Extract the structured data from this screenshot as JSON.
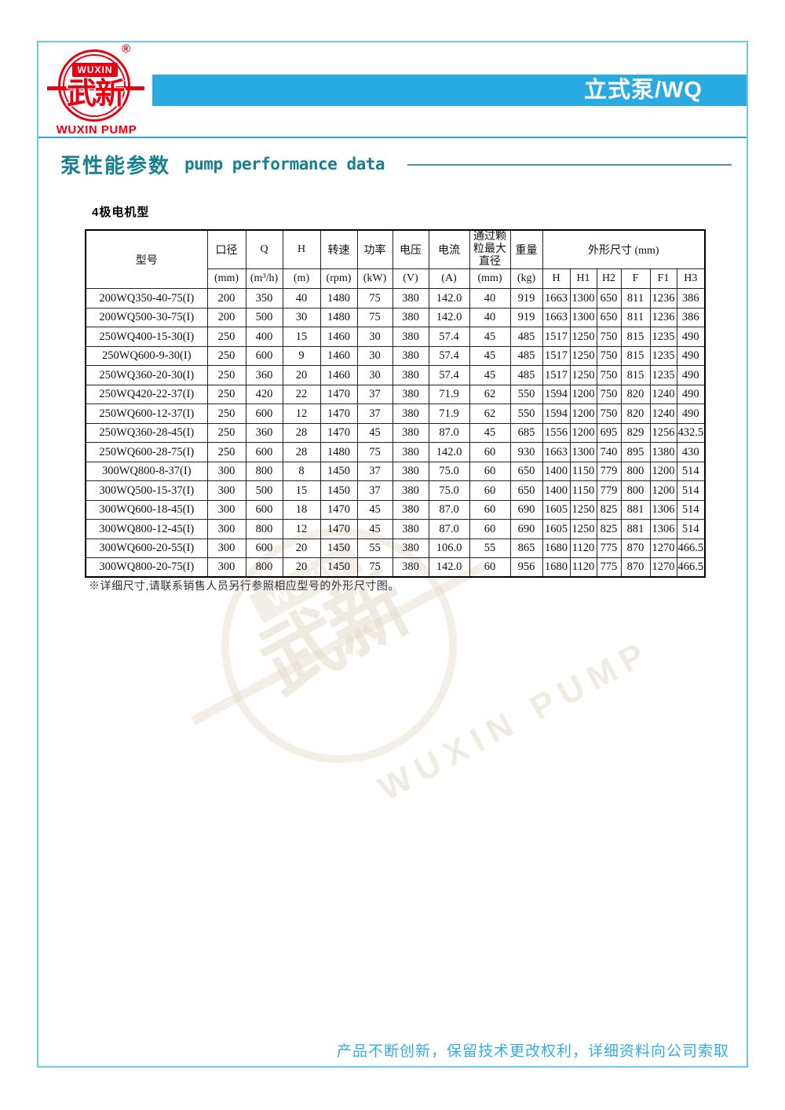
{
  "colors": {
    "accent_blue": "#29ABE2",
    "border_blue": "#70C7EB",
    "teal": "#17808F",
    "brand_red": "#E60012",
    "footer_blue": "#35ADE4"
  },
  "logo": {
    "registered_mark": "®",
    "brand_en": "WUXIN",
    "brand_zh": "武新",
    "caption": "WUXIN PUMP"
  },
  "header": {
    "category_label": "立式泵/WQ"
  },
  "section": {
    "title_zh": "泵性能参数",
    "title_en": "pump performance data"
  },
  "table": {
    "caption": "4极电机型",
    "model_header": "型号",
    "columns": [
      {
        "label": "口径",
        "unit": "(mm)"
      },
      {
        "label": "Q",
        "unit": "(m³/h)"
      },
      {
        "label": "H",
        "unit": "(m)"
      },
      {
        "label": "转速",
        "unit": "(rpm)"
      },
      {
        "label": "功率",
        "unit": "(kW)"
      },
      {
        "label": "电压",
        "unit": "(V)"
      },
      {
        "label": "电流",
        "unit": "(A)"
      },
      {
        "label": "通过颗粒最大直径",
        "unit": "(mm)"
      },
      {
        "label": "重量",
        "unit": "(kg)"
      }
    ],
    "dim_group": {
      "label": "外形尺寸 (mm)",
      "subcolumns": [
        "H",
        "H1",
        "H2",
        "F",
        "F1",
        "H3"
      ]
    },
    "rows": [
      [
        "200WQ350-40-75(I)",
        "200",
        "350",
        "40",
        "1480",
        "75",
        "380",
        "142.0",
        "40",
        "919",
        "1663",
        "1300",
        "650",
        "811",
        "1236",
        "386"
      ],
      [
        "200WQ500-30-75(I)",
        "200",
        "500",
        "30",
        "1480",
        "75",
        "380",
        "142.0",
        "40",
        "919",
        "1663",
        "1300",
        "650",
        "811",
        "1236",
        "386"
      ],
      [
        "250WQ400-15-30(I)",
        "250",
        "400",
        "15",
        "1460",
        "30",
        "380",
        "57.4",
        "45",
        "485",
        "1517",
        "1250",
        "750",
        "815",
        "1235",
        "490"
      ],
      [
        "250WQ600-9-30(I)",
        "250",
        "600",
        "9",
        "1460",
        "30",
        "380",
        "57.4",
        "45",
        "485",
        "1517",
        "1250",
        "750",
        "815",
        "1235",
        "490"
      ],
      [
        "250WQ360-20-30(I)",
        "250",
        "360",
        "20",
        "1460",
        "30",
        "380",
        "57.4",
        "45",
        "485",
        "1517",
        "1250",
        "750",
        "815",
        "1235",
        "490"
      ],
      [
        "250WQ420-22-37(I)",
        "250",
        "420",
        "22",
        "1470",
        "37",
        "380",
        "71.9",
        "62",
        "550",
        "1594",
        "1200",
        "750",
        "820",
        "1240",
        "490"
      ],
      [
        "250WQ600-12-37(I)",
        "250",
        "600",
        "12",
        "1470",
        "37",
        "380",
        "71.9",
        "62",
        "550",
        "1594",
        "1200",
        "750",
        "820",
        "1240",
        "490"
      ],
      [
        "250WQ360-28-45(I)",
        "250",
        "360",
        "28",
        "1470",
        "45",
        "380",
        "87.0",
        "45",
        "685",
        "1556",
        "1200",
        "695",
        "829",
        "1256",
        "432.5"
      ],
      [
        "250WQ600-28-75(I)",
        "250",
        "600",
        "28",
        "1480",
        "75",
        "380",
        "142.0",
        "60",
        "930",
        "1663",
        "1300",
        "740",
        "895",
        "1380",
        "430"
      ],
      [
        "300WQ800-8-37(I)",
        "300",
        "800",
        "8",
        "1450",
        "37",
        "380",
        "75.0",
        "60",
        "650",
        "1400",
        "1150",
        "779",
        "800",
        "1200",
        "514"
      ],
      [
        "300WQ500-15-37(I)",
        "300",
        "500",
        "15",
        "1450",
        "37",
        "380",
        "75.0",
        "60",
        "650",
        "1400",
        "1150",
        "779",
        "800",
        "1200",
        "514"
      ],
      [
        "300WQ600-18-45(I)",
        "300",
        "600",
        "18",
        "1470",
        "45",
        "380",
        "87.0",
        "60",
        "690",
        "1605",
        "1250",
        "825",
        "881",
        "1306",
        "514"
      ],
      [
        "300WQ800-12-45(I)",
        "300",
        "800",
        "12",
        "1470",
        "45",
        "380",
        "87.0",
        "60",
        "690",
        "1605",
        "1250",
        "825",
        "881",
        "1306",
        "514"
      ],
      [
        "300WQ600-20-55(I)",
        "300",
        "600",
        "20",
        "1450",
        "55",
        "380",
        "106.0",
        "55",
        "865",
        "1680",
        "1120",
        "775",
        "870",
        "1270",
        "466.5"
      ],
      [
        "300WQ800-20-75(I)",
        "300",
        "800",
        "20",
        "1450",
        "75",
        "380",
        "142.0",
        "60",
        "956",
        "1680",
        "1120",
        "775",
        "870",
        "1270",
        "466.5"
      ]
    ]
  },
  "footnote": "※详细尺寸,请联系销售人员另行参照相应型号的外形尺寸图。",
  "footer": {
    "note": "产品不断创新，保留技术更改权利，详细资料向公司索取"
  },
  "watermark": {
    "brand_en": "WUXIN",
    "brand_zh": "武新",
    "caption": "WUXIN PUMP"
  }
}
